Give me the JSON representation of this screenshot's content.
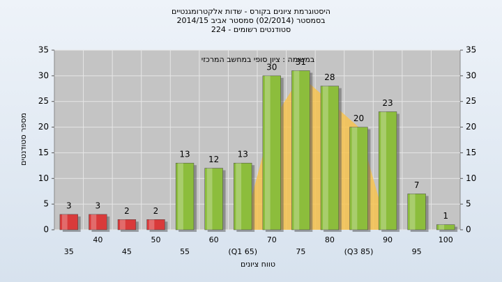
{
  "chart_data": {
    "type": "bar",
    "title": "היסטוגרמת ציונים בקורס - שדות אלקטרומגנטיים",
    "subtitle": "בסמסטר  (02/2014)  סמסטר אביב 2014/15",
    "subtitle2": "סטודנטים רשומים - 224",
    "annotation": "במשימה : ציון סופי במחשב המרכזי",
    "x_label": "טווח ציונים",
    "y_label": "מספר סטודנטים",
    "categories": [
      "35",
      "40",
      "45",
      "50",
      "55",
      "60",
      "(Q1 65)",
      "70",
      "75",
      "80",
      "(Q3 85)",
      "90",
      "95",
      "100"
    ],
    "values": [
      3,
      3,
      2,
      2,
      13,
      12,
      13,
      30,
      31,
      28,
      20,
      23,
      7,
      1
    ],
    "colors": [
      "#d93a3a",
      "#d93a3a",
      "#d93a3a",
      "#d93a3a",
      "#8cbd3c",
      "#8cbd3c",
      "#8cbd3c",
      "#8cbd3c",
      "#8cbd3c",
      "#8cbd3c",
      "#8cbd3c",
      "#8cbd3c",
      "#8cbd3c",
      "#8cbd3c"
    ],
    "shaded_area": {
      "color": "#f7c350",
      "values": [
        null,
        null,
        null,
        null,
        null,
        null,
        0,
        21,
        30,
        25,
        20,
        0,
        null,
        null
      ]
    },
    "ylim": [
      0,
      35
    ],
    "yticks": [
      0,
      5,
      10,
      15,
      20,
      25,
      30,
      35
    ],
    "grid": true
  }
}
